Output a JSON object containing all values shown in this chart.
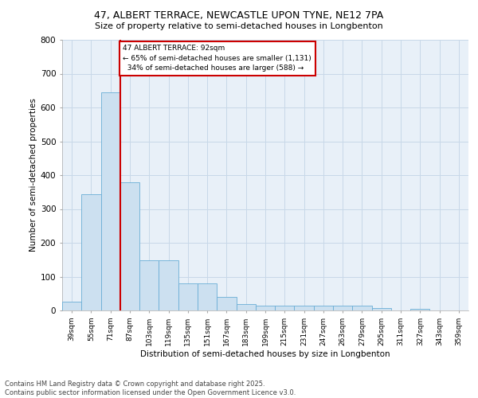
{
  "title_line1": "47, ALBERT TERRACE, NEWCASTLE UPON TYNE, NE12 7PA",
  "title_line2": "Size of property relative to semi-detached houses in Longbenton",
  "xlabel": "Distribution of semi-detached houses by size in Longbenton",
  "ylabel": "Number of semi-detached properties",
  "categories": [
    "39sqm",
    "55sqm",
    "71sqm",
    "87sqm",
    "103sqm",
    "119sqm",
    "135sqm",
    "151sqm",
    "167sqm",
    "183sqm",
    "199sqm",
    "215sqm",
    "231sqm",
    "247sqm",
    "263sqm",
    "279sqm",
    "295sqm",
    "311sqm",
    "327sqm",
    "343sqm",
    "359sqm"
  ],
  "values": [
    27,
    343,
    645,
    378,
    148,
    148,
    80,
    80,
    40,
    18,
    13,
    13,
    13,
    13,
    13,
    13,
    7,
    0,
    5,
    0,
    0
  ],
  "bar_color": "#cce0f0",
  "bar_edge_color": "#6aaed6",
  "vline_x_index": 3,
  "vline_color": "#cc0000",
  "annotation_box_color": "#cc0000",
  "grid_color": "#c8d8e8",
  "background_color": "#e8f0f8",
  "property_size_label": "47 ALBERT TERRACE: 92sqm",
  "pct_smaller": 65,
  "n_smaller": 1131,
  "pct_larger": 34,
  "n_larger": 588,
  "footer_line1": "Contains HM Land Registry data © Crown copyright and database right 2025.",
  "footer_line2": "Contains public sector information licensed under the Open Government Licence v3.0.",
  "ylim": [
    0,
    800
  ],
  "yticks": [
    0,
    100,
    200,
    300,
    400,
    500,
    600,
    700,
    800
  ]
}
